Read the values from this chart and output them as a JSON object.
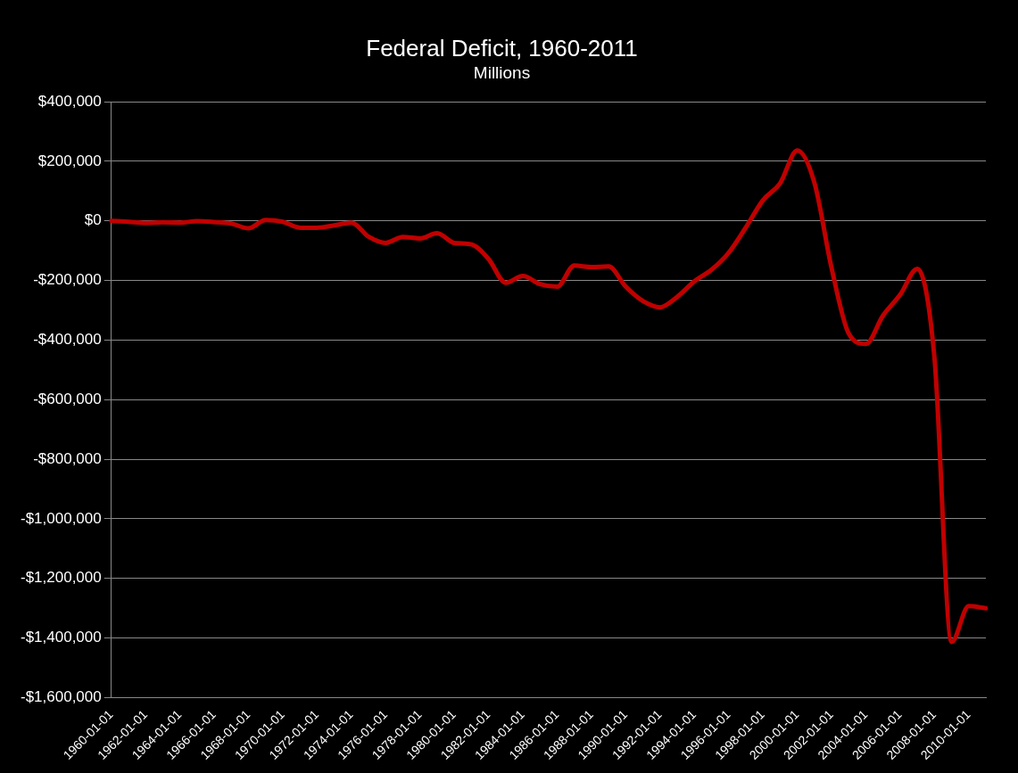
{
  "chart_data": {
    "type": "line",
    "title": "Federal Deficit, 1960-2011",
    "subtitle": "Millions",
    "categories": [
      "1960-01-01",
      null,
      "1962-01-01",
      null,
      "1964-01-01",
      null,
      "1966-01-01",
      null,
      "1968-01-01",
      null,
      "1970-01-01",
      null,
      "1972-01-01",
      null,
      "1974-01-01",
      null,
      "1976-01-01",
      null,
      "1978-01-01",
      null,
      "1980-01-01",
      null,
      "1982-01-01",
      null,
      "1984-01-01",
      null,
      "1986-01-01",
      null,
      "1988-01-01",
      null,
      "1990-01-01",
      null,
      "1992-01-01",
      null,
      "1994-01-01",
      null,
      "1996-01-01",
      null,
      "1998-01-01",
      null,
      "2000-01-01",
      null,
      "2002-01-01",
      null,
      "2004-01-01",
      null,
      "2006-01-01",
      null,
      "2008-01-01",
      null,
      "2010-01-01",
      null
    ],
    "series": [
      {
        "color": "#c00000",
        "values": [
          0,
          -3000,
          -7000,
          -5000,
          -6000,
          -1000,
          -4000,
          -9000,
          -25000,
          3000,
          -3000,
          -23000,
          -23000,
          -15000,
          -6000,
          -53000,
          -74000,
          -54000,
          -59000,
          -41000,
          -74000,
          -79000,
          -128000,
          -208000,
          -185000,
          -212000,
          -221000,
          -150000,
          -155000,
          -153000,
          -221000,
          -269000,
          -290000,
          -255000,
          -203000,
          -164000,
          -107000,
          -22000,
          69000,
          126000,
          236000,
          128000,
          -158000,
          -378000,
          -413000,
          -318000,
          -248000,
          -161000,
          -459000,
          -1413000,
          -1293000,
          -1300000
        ]
      }
    ],
    "ylim": [
      -1600000,
      400000
    ],
    "yticks": [
      {
        "value": -1600000,
        "label": "-$1,600,000"
      },
      {
        "value": -1400000,
        "label": "-$1,400,000"
      },
      {
        "value": -1200000,
        "label": "-$1,200,000"
      },
      {
        "value": -1000000,
        "label": "-$1,000,000"
      },
      {
        "value": -800000,
        "label": "-$800,000"
      },
      {
        "value": -600000,
        "label": "-$600,000"
      },
      {
        "value": -400000,
        "label": "-$400,000"
      },
      {
        "value": -200000,
        "label": "-$200,000"
      },
      {
        "value": 0,
        "label": "$0"
      },
      {
        "value": 200000,
        "label": "$200,000"
      },
      {
        "value": 400000,
        "label": "$400,000"
      }
    ],
    "grid": "y",
    "legend": false
  }
}
